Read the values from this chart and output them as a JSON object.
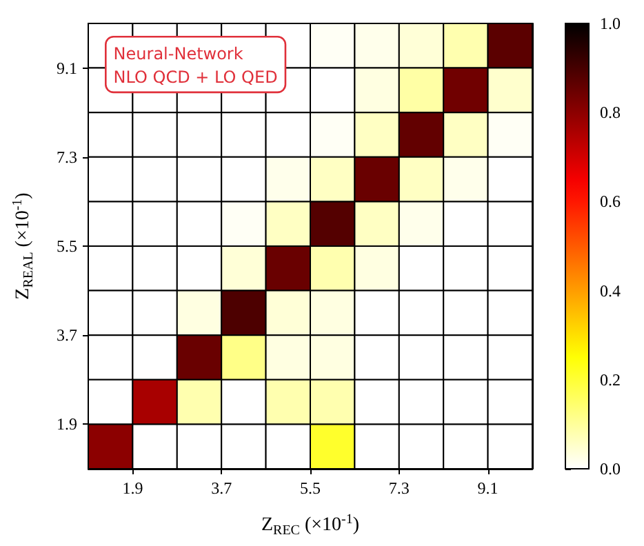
{
  "chart_data": {
    "type": "heatmap",
    "xlabel": "Z$_{REC}$ (×10$^{-1}$)",
    "ylabel": "Z$_{REAL}$ (×10$^{-1}$)",
    "annotations": [
      "Neural-Network",
      "NLO QCD + LO QED"
    ],
    "x": [
      1.45,
      2.35,
      3.25,
      4.15,
      5.05,
      5.95,
      6.85,
      7.75,
      8.65,
      9.55
    ],
    "y": [
      9.55,
      8.65,
      7.75,
      6.85,
      5.95,
      5.05,
      4.15,
      3.25,
      2.35,
      1.45
    ],
    "xlim": [
      1.0,
      10.0
    ],
    "xticks": [
      1.9,
      3.7,
      5.5,
      7.3,
      9.1
    ],
    "ylim": [
      1.0,
      10.0
    ],
    "yticks": [
      1.9,
      3.7,
      5.5,
      7.3,
      9.1
    ],
    "cells": [
      [
        0,
        0,
        0,
        0,
        0,
        0.01,
        0.02,
        0.04,
        0.08,
        0.87
      ],
      [
        0,
        0,
        0,
        0,
        0,
        0,
        0.03,
        0.09,
        0.84,
        0.05
      ],
      [
        0,
        0,
        0,
        0,
        0,
        0.01,
        0.06,
        0.86,
        0.06,
        0.01
      ],
      [
        0,
        0,
        0,
        0,
        0.02,
        0.06,
        0.85,
        0.06,
        0.02,
        0
      ],
      [
        0,
        0,
        0,
        0.01,
        0.06,
        0.88,
        0.06,
        0.02,
        0,
        0
      ],
      [
        0,
        0,
        0,
        0.04,
        0.85,
        0.08,
        0.03,
        0,
        0,
        0
      ],
      [
        0,
        0,
        0.03,
        0.89,
        0.04,
        0.03,
        0,
        0,
        0,
        0
      ],
      [
        0,
        0,
        0.85,
        0.12,
        0.03,
        0.03,
        0,
        0,
        0,
        0
      ],
      [
        0,
        0.76,
        0.08,
        0,
        0.08,
        0.08,
        0,
        0,
        0,
        0
      ],
      [
        0.8,
        0,
        0,
        0,
        0,
        0.21,
        0,
        0,
        0,
        0
      ]
    ],
    "clim": [
      0,
      1
    ],
    "cticks": [
      {
        "value": 0,
        "label": "0.0"
      },
      0.2,
      0.4,
      0.6,
      0.8,
      {
        "value": 1,
        "label": "1.0"
      }
    ]
  }
}
